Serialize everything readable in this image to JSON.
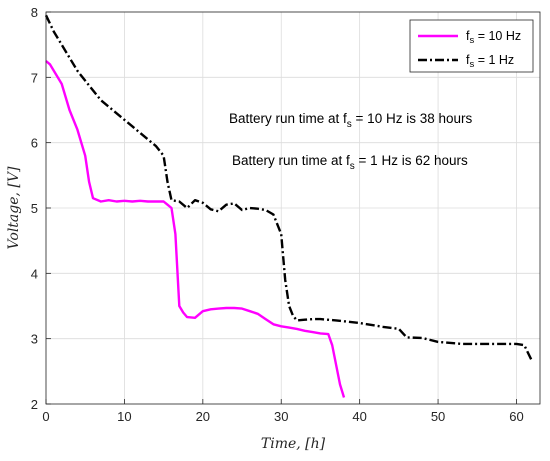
{
  "chart_data": {
    "type": "line",
    "xlabel": "Time, [h]",
    "ylabel": "Voltage, [V]",
    "xlim": [
      0,
      63
    ],
    "ylim": [
      2,
      8
    ],
    "xticks": [
      0,
      10,
      20,
      30,
      40,
      50,
      60
    ],
    "yticks": [
      2,
      3,
      4,
      5,
      6,
      7,
      8
    ],
    "grid": true,
    "legend_position": "top-right",
    "annotations": [
      {
        "main": "Battery run time at f",
        "sub": "s",
        "rest": " = 10 Hz is 38 hours"
      },
      {
        "main": "Battery run time at f",
        "sub": "s",
        "rest": " = 1 Hz is 62 hours"
      }
    ],
    "series": [
      {
        "legend_main": "f",
        "legend_sub": "s",
        "legend_rest": " = 10 Hz",
        "color": "#ff00ff",
        "style": "solid",
        "x": [
          0,
          0.5,
          1,
          2,
          3,
          4,
          5,
          5.5,
          6,
          7,
          8,
          9,
          10,
          11,
          12,
          13,
          14,
          15,
          15.5,
          16,
          16.5,
          17,
          17.5,
          18,
          19,
          20,
          21,
          22,
          23,
          24,
          25,
          26,
          27,
          28,
          29,
          30,
          31,
          32,
          33,
          34,
          35,
          36,
          36.5,
          37,
          37.5,
          38
        ],
        "y": [
          7.25,
          7.2,
          7.1,
          6.9,
          6.5,
          6.2,
          5.8,
          5.4,
          5.15,
          5.1,
          5.12,
          5.1,
          5.11,
          5.1,
          5.11,
          5.1,
          5.1,
          5.1,
          5.05,
          5.0,
          4.6,
          3.5,
          3.4,
          3.33,
          3.32,
          3.42,
          3.45,
          3.46,
          3.47,
          3.47,
          3.46,
          3.42,
          3.38,
          3.3,
          3.22,
          3.19,
          3.17,
          3.15,
          3.12,
          3.1,
          3.08,
          3.07,
          2.9,
          2.6,
          2.3,
          2.1
        ]
      },
      {
        "legend_main": "f",
        "legend_sub": "s",
        "legend_rest": " = 1 Hz",
        "color": "#000000",
        "style": "dashdot",
        "x": [
          0,
          1,
          2,
          3,
          4,
          5,
          6,
          7,
          8,
          9,
          10,
          11,
          12,
          13,
          14,
          15,
          15.5,
          16,
          17,
          18,
          19,
          20,
          21,
          22,
          23,
          24,
          25,
          26,
          27,
          28,
          29,
          30,
          30.5,
          31,
          31.5,
          32,
          33,
          34,
          35,
          37,
          40,
          43,
          45,
          46,
          48,
          50,
          53,
          55,
          58,
          60,
          61,
          62
        ],
        "y": [
          7.95,
          7.7,
          7.5,
          7.3,
          7.1,
          6.95,
          6.8,
          6.65,
          6.55,
          6.45,
          6.35,
          6.25,
          6.15,
          6.05,
          5.95,
          5.8,
          5.4,
          5.12,
          5.1,
          5.0,
          5.12,
          5.08,
          4.98,
          4.95,
          5.05,
          5.07,
          4.97,
          5.0,
          4.99,
          4.97,
          4.9,
          4.6,
          3.9,
          3.5,
          3.35,
          3.28,
          3.29,
          3.3,
          3.3,
          3.28,
          3.24,
          3.18,
          3.15,
          3.02,
          3.01,
          2.95,
          2.92,
          2.92,
          2.92,
          2.92,
          2.9,
          2.65
        ]
      }
    ]
  }
}
